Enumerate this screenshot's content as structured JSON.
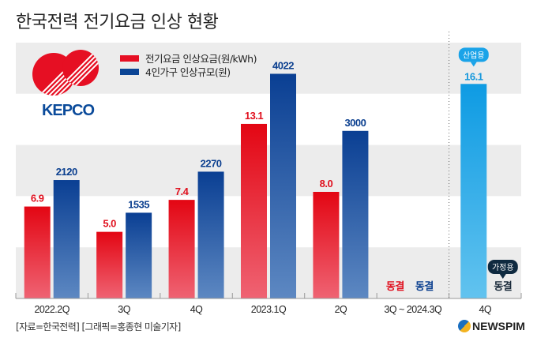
{
  "title": "한국전력 전기요금 인상 현황",
  "legend": [
    {
      "label": "전기요금 인상요금(원/kWh)",
      "color": "#e60f23"
    },
    {
      "label": "4인가구 인상규모(원)",
      "color": "#0b4595"
    }
  ],
  "logo_text": "KEPCO",
  "footer": {
    "source": "[자료=한국전력] [그래픽=홍종현 미술기자]",
    "brand": "NEWSPIM"
  },
  "chart_data": {
    "type": "bar",
    "title": "한국전력 전기요금 인상 현황",
    "xlabel": "",
    "ylabel": "",
    "categories": [
      "2022.2Q",
      "3Q",
      "4Q",
      "2023.1Q",
      "2Q",
      "3Q ~ 2024.3Q",
      "4Q"
    ],
    "series": [
      {
        "name": "전기요금 인상요금(원/kWh)",
        "color": "#e60f23",
        "values": [
          6.9,
          5.0,
          7.4,
          13.1,
          8.0,
          null,
          null
        ],
        "labels": [
          "6.9",
          "5.0",
          "7.4",
          "13.1",
          "8.0",
          "동결",
          null
        ]
      },
      {
        "name": "4인가구 인상규모(원)",
        "color": "#0b4595",
        "values": [
          2120,
          1535,
          2270,
          4022,
          3000,
          null,
          null
        ],
        "labels": [
          "2120",
          "1535",
          "2270",
          "4022",
          "3000",
          "동결",
          null
        ]
      },
      {
        "name": "산업용",
        "color": "#1aa3e8",
        "values": [
          null,
          null,
          null,
          null,
          null,
          null,
          16.1
        ],
        "labels": [
          null,
          null,
          null,
          null,
          null,
          null,
          "16.1"
        ]
      }
    ],
    "annotations": [
      {
        "category": "4Q",
        "callout": "산업용",
        "text": "16.1",
        "color": "#1aa3e8"
      },
      {
        "category": "4Q",
        "callout": "가정용",
        "text": "동결",
        "color": "#0f2a40"
      }
    ],
    "ylim_rate": [
      0,
      19.2
    ],
    "ylim_household": [
      0,
      4580
    ],
    "grid": "alternating bands",
    "legend_position": "top-left"
  }
}
